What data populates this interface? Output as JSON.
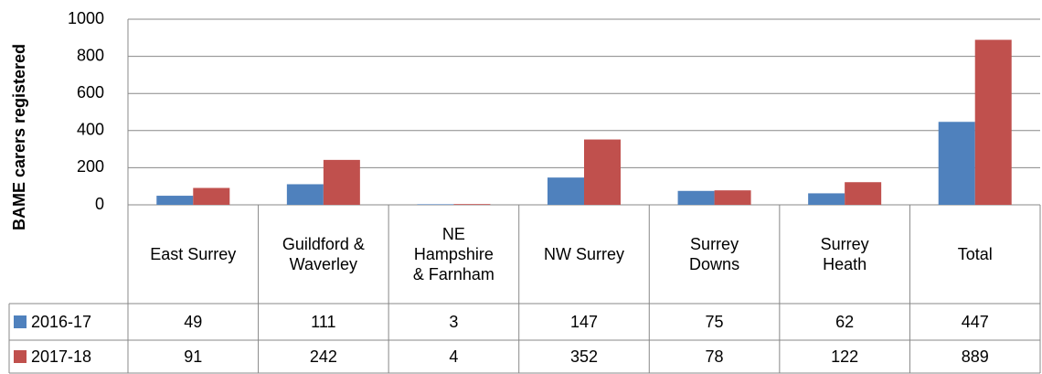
{
  "chart_data": {
    "type": "bar",
    "y_label": "BAME carers registered",
    "categories": [
      "East Surrey",
      "Guildford & Waverley",
      "NE Hampshire & Farnham",
      "NW Surrey",
      "Surrey Downs",
      "Surrey Heath",
      "Total"
    ],
    "series": [
      {
        "name": "2016-17",
        "color": "#4f81bd",
        "values": [
          49,
          111,
          3,
          147,
          75,
          62,
          447
        ]
      },
      {
        "name": "2017-18",
        "color": "#c0504d",
        "values": [
          91,
          242,
          4,
          352,
          78,
          122,
          889
        ]
      }
    ],
    "ylim": [
      0,
      1000
    ],
    "yticks": [
      0,
      200,
      400,
      600,
      800,
      1000
    ],
    "grid": true
  }
}
